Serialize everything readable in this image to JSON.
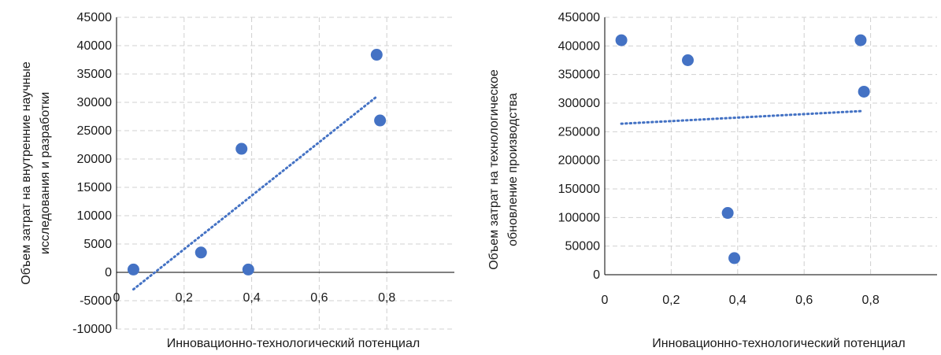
{
  "chart_data": [
    {
      "type": "scatter",
      "title": "",
      "xlabel": "Инновационно-технологический потенциал",
      "ylabel_lines": [
        "Объем затрат на внутренние научные",
        "исследования и разработки"
      ],
      "xlim": [
        0,
        1
      ],
      "ylim": [
        -10000,
        45000
      ],
      "x_ticks": [
        0,
        0.2,
        0.4,
        0.6,
        0.8
      ],
      "x_tick_labels": [
        "0",
        "0,2",
        "0,4",
        "0,6",
        "0,8"
      ],
      "y_ticks": [
        -10000,
        -5000,
        0,
        5000,
        10000,
        15000,
        20000,
        25000,
        30000,
        35000,
        40000,
        45000
      ],
      "y_tick_labels": [
        "-10000",
        "-5000",
        "0",
        "5000",
        "10000",
        "15000",
        "20000",
        "25000",
        "30000",
        "35000",
        "40000",
        "45000"
      ],
      "grid": true,
      "color": "#4472C4",
      "points": [
        {
          "x": 0.05,
          "y": 500
        },
        {
          "x": 0.25,
          "y": 3500
        },
        {
          "x": 0.37,
          "y": 21800
        },
        {
          "x": 0.39,
          "y": 500
        },
        {
          "x": 0.77,
          "y": 38400
        },
        {
          "x": 0.78,
          "y": 26800
        }
      ],
      "trendline": {
        "x": [
          0.05,
          0.77
        ],
        "y": [
          -3000,
          31000
        ],
        "style": "dotted"
      }
    },
    {
      "type": "scatter",
      "title": "",
      "xlabel": "Инновационно-технологический потенциал",
      "ylabel_lines": [
        "Объем затрат на технологическое",
        "обновление производства"
      ],
      "xlim": [
        0,
        1
      ],
      "ylim": [
        0,
        450000
      ],
      "x_ticks": [
        0,
        0.2,
        0.4,
        0.6,
        0.8
      ],
      "x_tick_labels": [
        "0",
        "0,2",
        "0,4",
        "0,6",
        "0,8"
      ],
      "y_ticks": [
        0,
        50000,
        100000,
        150000,
        200000,
        250000,
        300000,
        350000,
        400000,
        450000
      ],
      "y_tick_labels": [
        "0",
        "50000",
        "100000",
        "150000",
        "200000",
        "250000",
        "300000",
        "350000",
        "400000",
        "450000"
      ],
      "grid": true,
      "color": "#4472C4",
      "points": [
        {
          "x": 0.05,
          "y": 410000
        },
        {
          "x": 0.25,
          "y": 375000
        },
        {
          "x": 0.37,
          "y": 108000
        },
        {
          "x": 0.39,
          "y": 29000
        },
        {
          "x": 0.77,
          "y": 410000
        },
        {
          "x": 0.78,
          "y": 320000
        }
      ],
      "trendline": {
        "x": [
          0.05,
          0.77
        ],
        "y": [
          264000,
          286000
        ],
        "style": "dotted"
      }
    }
  ]
}
